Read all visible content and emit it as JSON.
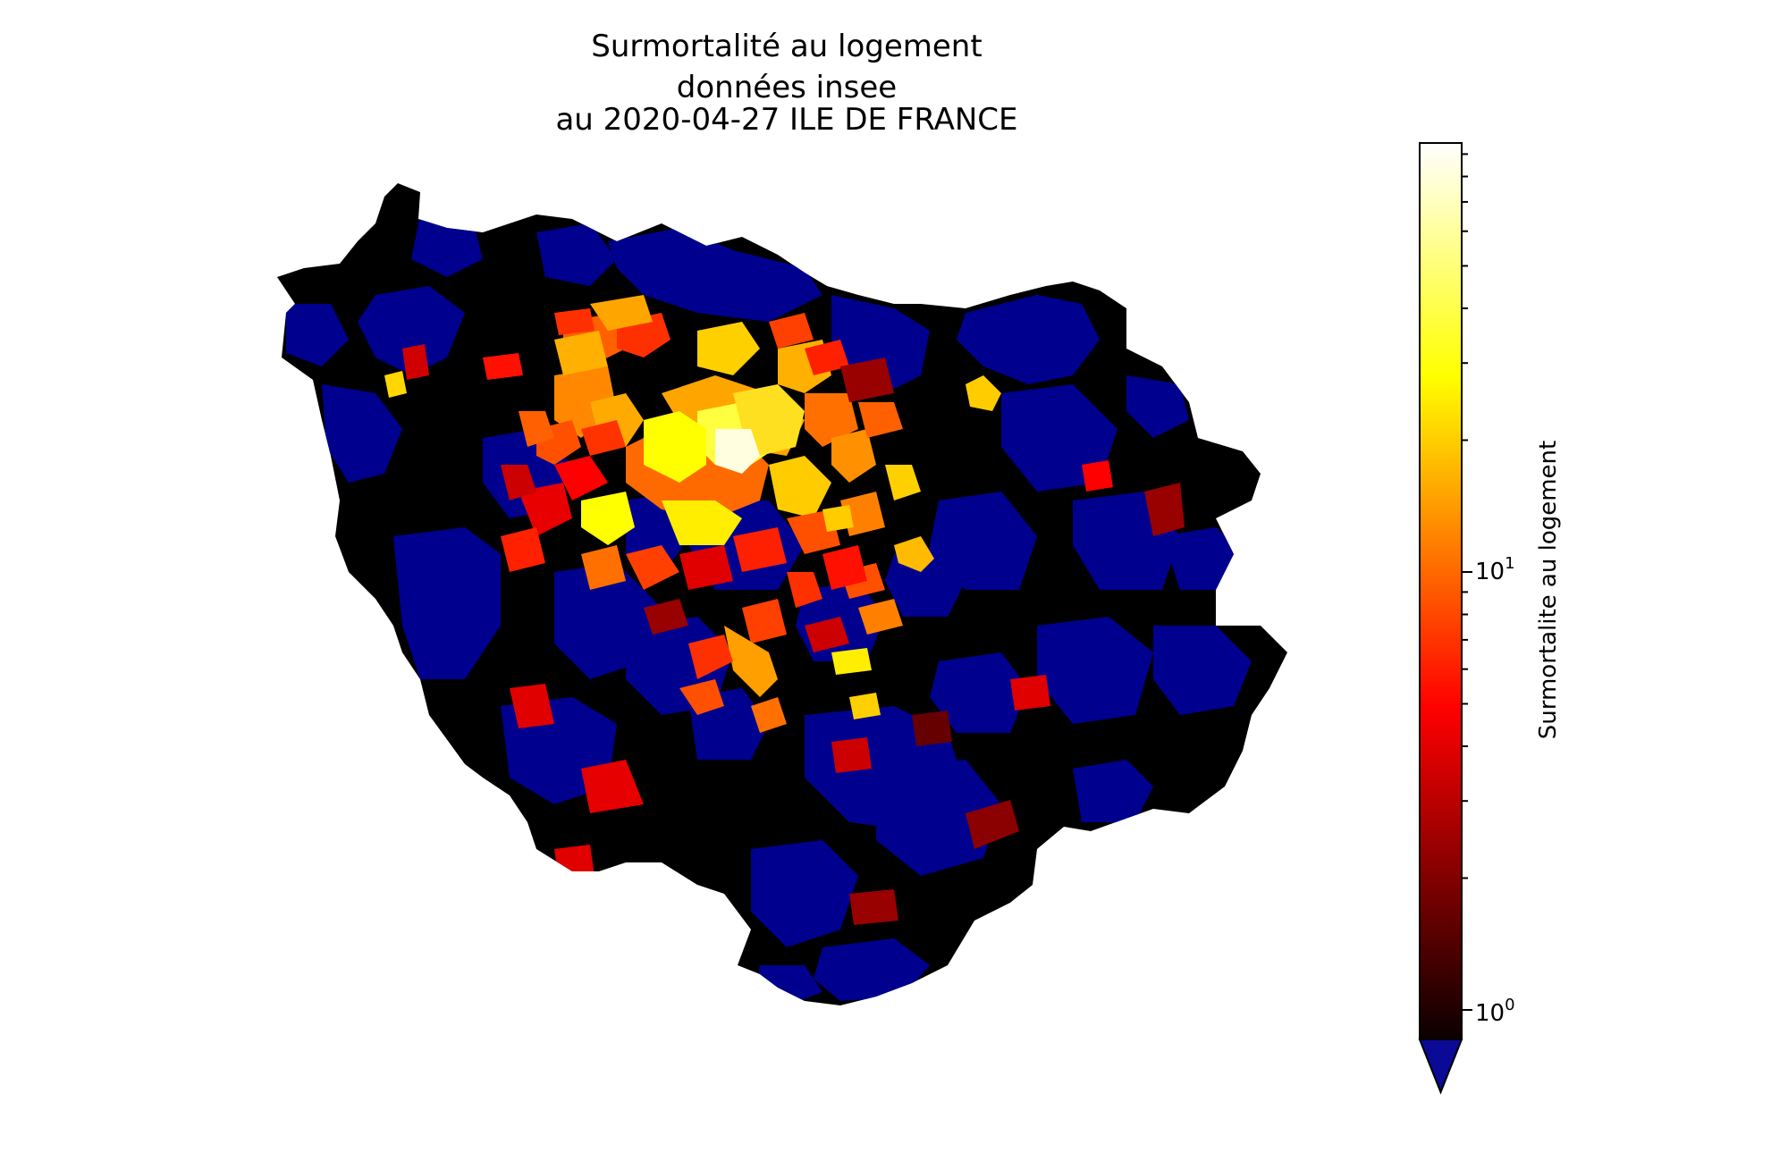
{
  "title": {
    "line1": "Surmortalité au logement",
    "line2": "données insee",
    "line3": "au 2020-04-27 ILE DE FRANCE"
  },
  "colorbar": {
    "label": "Surmortalite au logement",
    "scale": "log",
    "colormap": "hot",
    "under_color": "#0a0a96",
    "extend": "min",
    "ticks": [
      {
        "value": 1,
        "base": "10",
        "exp": "0"
      },
      {
        "value": 10,
        "base": "10",
        "exp": "1"
      }
    ]
  },
  "map": {
    "region": "Île-de-France communes",
    "colors": {
      "below_one": "#00008f",
      "background": "#000000",
      "border": "#ffffff"
    }
  }
}
